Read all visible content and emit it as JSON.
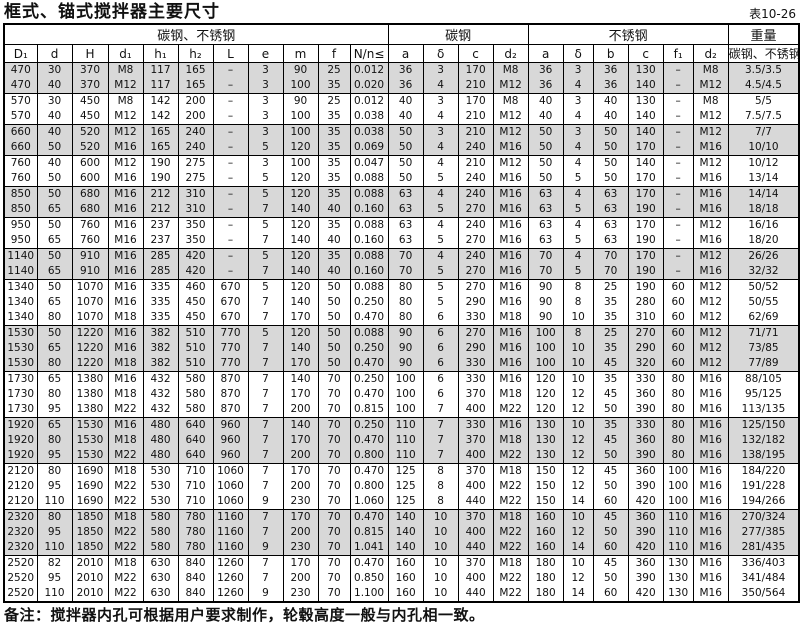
{
  "page_title": "框式、锚式搅拌器主要尺寸",
  "table_ref": "表10-26",
  "footer_note": "备注：搅拌器内孔可根据用户要求制作，轮毂高度一般与内孔相一致。",
  "colors": {
    "row_shade": "#d8d8d8",
    "border": "#000000",
    "background": "#ffffff",
    "text": "#111111"
  },
  "table": {
    "group_headers": [
      {
        "label": "碳钢、不锈钢",
        "colspan": 11
      },
      {
        "label": "碳钢",
        "colspan": 4
      },
      {
        "label": "不锈钢",
        "colspan": 6
      },
      {
        "label": "重量",
        "colspan": 1
      }
    ],
    "columns": [
      "D₁",
      "d",
      "H",
      "d₁",
      "h₁",
      "h₂",
      "L",
      "e",
      "m",
      "f",
      "N/n≤",
      "a",
      "δ",
      "c",
      "d₂",
      "a",
      "δ",
      "b",
      "c",
      "f₁",
      "d₂",
      "碳钢、不锈钢"
    ],
    "row_groups": [
      {
        "shaded": true,
        "rows": [
          [
            470,
            30,
            370,
            "M8",
            117,
            165,
            "–",
            3,
            90,
            25,
            "0.012",
            36,
            3,
            170,
            "M8",
            36,
            3,
            36,
            130,
            "–",
            "M8",
            "3.5/3.5"
          ],
          [
            470,
            40,
            370,
            "M12",
            117,
            165,
            "–",
            3,
            100,
            35,
            "0.020",
            36,
            4,
            210,
            "M12",
            36,
            4,
            36,
            140,
            "–",
            "M12",
            "4.5/4.5"
          ]
        ]
      },
      {
        "shaded": false,
        "rows": [
          [
            570,
            30,
            450,
            "M8",
            142,
            200,
            "–",
            3,
            90,
            25,
            "0.012",
            40,
            3,
            170,
            "M8",
            40,
            3,
            40,
            130,
            "–",
            "M8",
            "5/5"
          ],
          [
            570,
            40,
            450,
            "M12",
            142,
            200,
            "–",
            3,
            100,
            35,
            "0.038",
            40,
            4,
            210,
            "M12",
            40,
            4,
            40,
            140,
            "–",
            "M12",
            "7.5/7.5"
          ]
        ]
      },
      {
        "shaded": true,
        "rows": [
          [
            660,
            40,
            520,
            "M12",
            165,
            240,
            "–",
            3,
            100,
            35,
            "0.038",
            50,
            3,
            210,
            "M12",
            50,
            3,
            50,
            140,
            "–",
            "M12",
            "7/7"
          ],
          [
            660,
            50,
            520,
            "M16",
            165,
            240,
            "–",
            5,
            120,
            35,
            "0.069",
            50,
            4,
            240,
            "M16",
            50,
            4,
            50,
            170,
            "–",
            "M16",
            "10/10"
          ]
        ]
      },
      {
        "shaded": false,
        "rows": [
          [
            760,
            40,
            600,
            "M12",
            190,
            275,
            "–",
            3,
            100,
            35,
            "0.047",
            50,
            4,
            210,
            "M12",
            50,
            4,
            50,
            140,
            "–",
            "M12",
            "10/12"
          ],
          [
            760,
            50,
            600,
            "M16",
            190,
            275,
            "–",
            5,
            120,
            35,
            "0.088",
            50,
            5,
            240,
            "M16",
            50,
            5,
            50,
            170,
            "–",
            "M16",
            "13/14"
          ]
        ]
      },
      {
        "shaded": true,
        "rows": [
          [
            850,
            50,
            680,
            "M16",
            212,
            310,
            "–",
            5,
            120,
            35,
            "0.088",
            63,
            4,
            240,
            "M16",
            63,
            4,
            63,
            170,
            "–",
            "M16",
            "14/14"
          ],
          [
            850,
            65,
            680,
            "M16",
            212,
            310,
            "–",
            7,
            140,
            40,
            "0.160",
            63,
            5,
            270,
            "M16",
            63,
            5,
            63,
            190,
            "–",
            "M16",
            "18/18"
          ]
        ]
      },
      {
        "shaded": false,
        "rows": [
          [
            950,
            50,
            760,
            "M16",
            237,
            350,
            "–",
            5,
            120,
            35,
            "0.088",
            63,
            4,
            240,
            "M16",
            63,
            4,
            63,
            170,
            "–",
            "M12",
            "16/16"
          ],
          [
            950,
            65,
            760,
            "M16",
            237,
            350,
            "–",
            7,
            140,
            40,
            "0.160",
            63,
            5,
            270,
            "M16",
            63,
            5,
            63,
            190,
            "–",
            "M16",
            "18/20"
          ]
        ]
      },
      {
        "shaded": true,
        "rows": [
          [
            1140,
            50,
            910,
            "M16",
            285,
            420,
            "–",
            5,
            120,
            35,
            "0.088",
            70,
            4,
            240,
            "M16",
            70,
            4,
            70,
            170,
            "–",
            "M12",
            "26/26"
          ],
          [
            1140,
            65,
            910,
            "M16",
            285,
            420,
            "–",
            7,
            140,
            40,
            "0.160",
            70,
            5,
            270,
            "M16",
            70,
            5,
            70,
            190,
            "–",
            "M16",
            "32/32"
          ]
        ]
      },
      {
        "shaded": false,
        "rows": [
          [
            1340,
            50,
            1070,
            "M16",
            335,
            460,
            670,
            5,
            120,
            50,
            "0.088",
            80,
            5,
            270,
            "M16",
            90,
            8,
            25,
            190,
            60,
            "M12",
            "50/52"
          ],
          [
            1340,
            65,
            1070,
            "M16",
            335,
            450,
            670,
            7,
            140,
            50,
            "0.250",
            80,
            5,
            290,
            "M16",
            90,
            8,
            35,
            280,
            60,
            "M12",
            "50/55"
          ],
          [
            1340,
            80,
            1070,
            "M18",
            335,
            450,
            670,
            7,
            170,
            50,
            "0.470",
            80,
            6,
            330,
            "M18",
            90,
            10,
            35,
            310,
            60,
            "M12",
            "62/69"
          ]
        ]
      },
      {
        "shaded": true,
        "rows": [
          [
            1530,
            50,
            1220,
            "M16",
            382,
            510,
            770,
            5,
            120,
            50,
            "0.088",
            90,
            6,
            270,
            "M16",
            100,
            8,
            25,
            270,
            60,
            "M12",
            "71/71"
          ],
          [
            1530,
            65,
            1220,
            "M16",
            382,
            510,
            770,
            7,
            140,
            50,
            "0.250",
            90,
            6,
            290,
            "M16",
            100,
            10,
            35,
            290,
            60,
            "M12",
            "73/85"
          ],
          [
            1530,
            80,
            1220,
            "M18",
            382,
            510,
            770,
            7,
            170,
            50,
            "0.470",
            90,
            6,
            330,
            "M16",
            100,
            10,
            45,
            320,
            60,
            "M12",
            "77/89"
          ]
        ]
      },
      {
        "shaded": false,
        "rows": [
          [
            1730,
            65,
            1380,
            "M16",
            432,
            580,
            870,
            7,
            140,
            70,
            "0.250",
            100,
            6,
            330,
            "M16",
            120,
            10,
            35,
            330,
            80,
            "M16",
            "88/105"
          ],
          [
            1730,
            80,
            1380,
            "M18",
            432,
            580,
            870,
            7,
            170,
            70,
            "0.470",
            100,
            6,
            370,
            "M18",
            120,
            12,
            45,
            360,
            80,
            "M16",
            "95/125"
          ],
          [
            1730,
            95,
            1380,
            "M22",
            432,
            580,
            870,
            7,
            200,
            70,
            "0.815",
            100,
            7,
            400,
            "M22",
            120,
            12,
            50,
            390,
            80,
            "M16",
            "113/135"
          ]
        ]
      },
      {
        "shaded": true,
        "rows": [
          [
            1920,
            65,
            1530,
            "M16",
            480,
            640,
            960,
            7,
            140,
            70,
            "0.250",
            110,
            7,
            330,
            "M16",
            130,
            10,
            35,
            330,
            80,
            "M16",
            "125/150"
          ],
          [
            1920,
            80,
            1530,
            "M18",
            480,
            640,
            960,
            7,
            170,
            70,
            "0.470",
            110,
            7,
            370,
            "M18",
            130,
            12,
            45,
            360,
            80,
            "M16",
            "132/182"
          ],
          [
            1920,
            95,
            1530,
            "M22",
            480,
            640,
            960,
            7,
            200,
            70,
            "0.800",
            110,
            7,
            400,
            "M22",
            130,
            12,
            50,
            390,
            80,
            "M16",
            "138/195"
          ]
        ]
      },
      {
        "shaded": false,
        "rows": [
          [
            2120,
            80,
            1690,
            "M18",
            530,
            710,
            1060,
            7,
            170,
            70,
            "0.470",
            125,
            8,
            370,
            "M18",
            150,
            12,
            45,
            360,
            100,
            "M16",
            "184/220"
          ],
          [
            2120,
            95,
            1690,
            "M22",
            530,
            710,
            1060,
            7,
            200,
            70,
            "0.800",
            125,
            8,
            400,
            "M22",
            150,
            12,
            50,
            390,
            100,
            "M16",
            "191/228"
          ],
          [
            2120,
            110,
            1690,
            "M22",
            530,
            710,
            1060,
            9,
            230,
            70,
            "1.060",
            125,
            8,
            440,
            "M22",
            150,
            14,
            60,
            420,
            100,
            "M16",
            "194/266"
          ]
        ]
      },
      {
        "shaded": true,
        "rows": [
          [
            2320,
            80,
            1850,
            "M18",
            580,
            780,
            1160,
            7,
            170,
            70,
            "0.470",
            140,
            10,
            370,
            "M18",
            160,
            10,
            45,
            360,
            110,
            "M16",
            "270/324"
          ],
          [
            2320,
            95,
            1850,
            "M22",
            580,
            780,
            1160,
            7,
            200,
            70,
            "0.815",
            140,
            10,
            400,
            "M22",
            160,
            12,
            50,
            390,
            110,
            "M16",
            "277/385"
          ],
          [
            2320,
            110,
            1850,
            "M22",
            580,
            780,
            1160,
            9,
            230,
            70,
            "1.041",
            140,
            10,
            440,
            "M22",
            160,
            14,
            60,
            420,
            110,
            "M16",
            "281/435"
          ]
        ]
      },
      {
        "shaded": false,
        "rows": [
          [
            2520,
            82,
            2010,
            "M18",
            630,
            840,
            1260,
            7,
            170,
            70,
            "0.470",
            160,
            10,
            370,
            "M18",
            180,
            10,
            45,
            360,
            130,
            "M16",
            "336/403"
          ],
          [
            2520,
            95,
            2010,
            "M22",
            630,
            840,
            1260,
            7,
            200,
            70,
            "0.850",
            160,
            10,
            400,
            "M22",
            180,
            12,
            50,
            390,
            130,
            "M16",
            "341/484"
          ],
          [
            2520,
            110,
            2010,
            "M22",
            630,
            840,
            1260,
            9,
            230,
            70,
            "1.100",
            160,
            10,
            440,
            "M22",
            180,
            14,
            60,
            420,
            130,
            "M16",
            "350/564"
          ]
        ]
      }
    ]
  }
}
